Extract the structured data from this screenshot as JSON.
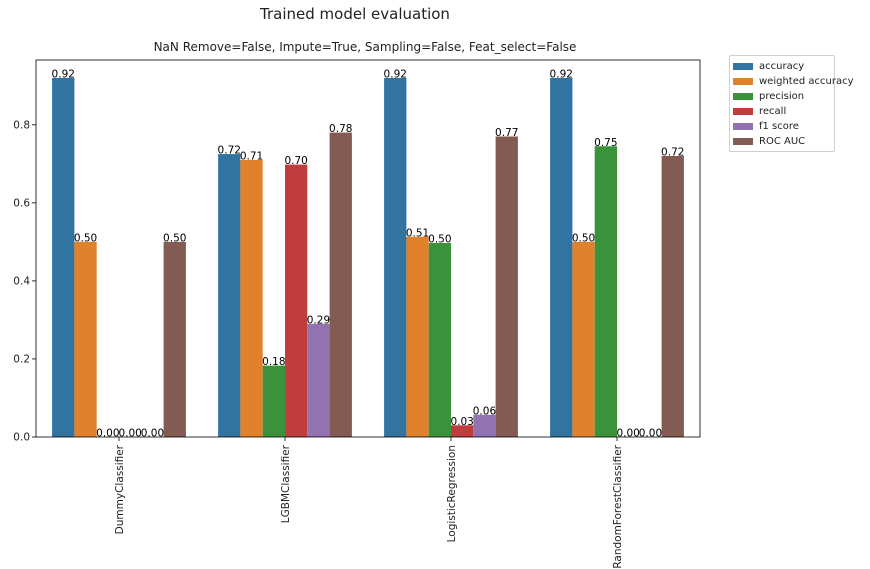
{
  "figure": {
    "suptitle": "Trained model evaluation",
    "subtitle": "NaN Remove=False, Impute=True, Sampling=False, Feat_select=False"
  },
  "chart_data": {
    "type": "bar",
    "title": "NaN Remove=False, Impute=True, Sampling=False, Feat_select=False",
    "xlabel": "",
    "ylabel": "",
    "ylim": [
      0,
      0.966
    ],
    "yticks": [
      0.0,
      0.2,
      0.4,
      0.6,
      0.8
    ],
    "ytick_labels": [
      "0.0",
      "0.2",
      "0.4",
      "0.6",
      "0.8"
    ],
    "categories": [
      "DummyClassifier",
      "LGBMClassifier",
      "LogisticRegression",
      "RandomForestClassifier"
    ],
    "legend_position": "outside-right-top",
    "grid": false,
    "series": [
      {
        "name": "accuracy",
        "color": "#3274a1",
        "values": [
          0.92,
          0.725,
          0.92,
          0.92
        ],
        "labels": [
          "0.92",
          "0.72",
          "0.92",
          "0.92"
        ]
      },
      {
        "name": "weighted accuracy",
        "color": "#e1812c",
        "values": [
          0.5,
          0.71,
          0.513,
          0.5
        ],
        "labels": [
          "0.50",
          "0.71",
          "0.51",
          "0.50"
        ]
      },
      {
        "name": "precision",
        "color": "#3a923a",
        "values": [
          0.0,
          0.183,
          0.497,
          0.745
        ],
        "labels": [
          "0.00",
          "0.18",
          "0.50",
          "0.75"
        ]
      },
      {
        "name": "recall",
        "color": "#c03d3e",
        "values": [
          0.0,
          0.698,
          0.03,
          0.0
        ],
        "labels": [
          "0.00",
          "0.70",
          "0.03",
          "0.00"
        ]
      },
      {
        "name": "f1 score",
        "color": "#9372b2",
        "values": [
          0.0,
          0.29,
          0.057,
          0.0
        ],
        "labels": [
          "0.00",
          "0.29",
          "0.06",
          "0.00"
        ]
      },
      {
        "name": "ROC AUC",
        "color": "#845b53",
        "values": [
          0.5,
          0.78,
          0.77,
          0.72
        ],
        "labels": [
          "0.50",
          "0.78",
          "0.77",
          "0.72"
        ]
      }
    ]
  }
}
